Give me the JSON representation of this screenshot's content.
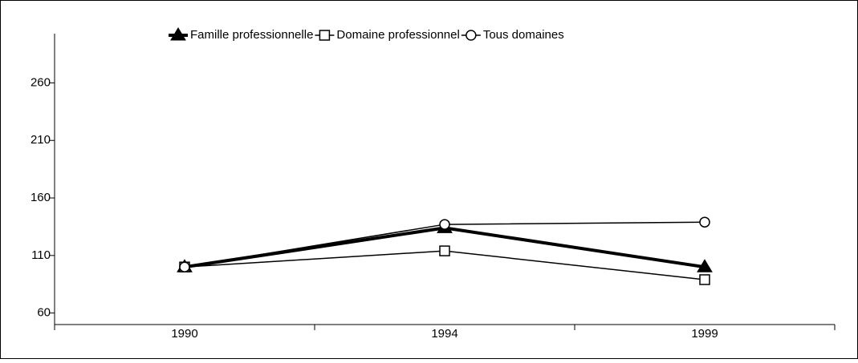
{
  "chart_data": {
    "type": "line",
    "categories": [
      "1990",
      "1994",
      "1999"
    ],
    "series": [
      {
        "name": "Famille professionnelle",
        "color": "#000000",
        "marker": "triangle",
        "values": [
          100,
          134,
          100
        ]
      },
      {
        "name": "Domaine professionnel",
        "color": "#000000",
        "marker": "square",
        "values": [
          100,
          114,
          89
        ]
      },
      {
        "name": "Tous domaines",
        "color": "#000000",
        "marker": "circle",
        "values": [
          100,
          137,
          139
        ]
      }
    ],
    "ylim": [
      50,
      300
    ],
    "yticks": [
      60,
      110,
      160,
      210,
      260
    ],
    "legend": "top"
  }
}
